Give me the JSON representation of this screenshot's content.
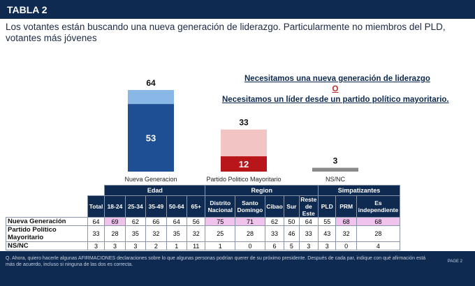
{
  "header": {
    "title": "TABLA 2"
  },
  "subtitle": "Los votantes están buscando una nueva generación de liderazgo. Particularmente no miembros del PLD, votantes más jóvenes",
  "statements": {
    "a": "Necesitamos una nueva generación de liderazgo",
    "or": "O",
    "b": "Necesitamos un líder desde un partido político mayoritario."
  },
  "colors": {
    "navy": "#0e2a50",
    "blue_dark": "#1e4e93",
    "blue_light": "#89b7e6",
    "red_dark": "#b8161b",
    "red_light": "#f2c4c4",
    "gray": "#8a8a8a",
    "highlight": "#efc3ec"
  },
  "chart_data": {
    "type": "bar",
    "categories": [
      "Nueva Generacion",
      "Partido Politico Mayoritario",
      "NS/NC"
    ],
    "totals": [
      64,
      33,
      3
    ],
    "strong": [
      53,
      12,
      null
    ],
    "total_labels": [
      "64",
      "33",
      "3"
    ],
    "strong_labels": [
      "53",
      "12",
      ""
    ],
    "ylim": [
      0,
      64
    ]
  },
  "table": {
    "groups": {
      "edad": "Edad",
      "region": "Region",
      "simpatizantes": "Simpatizantes"
    },
    "total_header": "Total",
    "columns": {
      "age": [
        "18-24",
        "25-34",
        "35-49",
        "50-64",
        "65+"
      ],
      "region": [
        "Distrito Nacional",
        "Santo Domingo",
        "Cibao",
        "Sur",
        "Reste de Este"
      ],
      "simp": [
        "PLD",
        "PRM",
        "Es independiente"
      ]
    },
    "rows": [
      {
        "label": "Nueva Generación",
        "total": "64",
        "age": [
          "69",
          "62",
          "66",
          "64",
          "56"
        ],
        "region": [
          "75",
          "71",
          "62",
          "50",
          "64"
        ],
        "simp": [
          "55",
          "68",
          "68"
        ]
      },
      {
        "label": "Partido Político Mayoritario",
        "total": "33",
        "age": [
          "28",
          "35",
          "32",
          "35",
          "32"
        ],
        "region": [
          "25",
          "28",
          "33",
          "46",
          "33"
        ],
        "simp": [
          "43",
          "32",
          "28"
        ]
      },
      {
        "label": "NS/NC",
        "total": "3",
        "age": [
          "3",
          "3",
          "2",
          "1",
          "11"
        ],
        "region": [
          "1",
          "0",
          "6",
          "5",
          "3"
        ],
        "simp": [
          "3",
          "0",
          "4"
        ]
      }
    ]
  },
  "footnote": "Q. Ahora, quiero hacerle algunas AFIRMACIONES declaraciones sobre lo que algunas personas podrían querer de su próximo presidente. Después de cada par, indique con qué afirmación está más de acuerdo, incluso si ninguna de las dos es correcta.",
  "page_label": "PAGE 2"
}
